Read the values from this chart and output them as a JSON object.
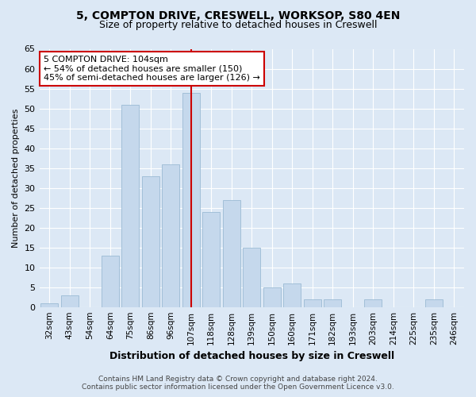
{
  "title_line1": "5, COMPTON DRIVE, CRESWELL, WORKSOP, S80 4EN",
  "title_line2": "Size of property relative to detached houses in Creswell",
  "xlabel": "Distribution of detached houses by size in Creswell",
  "ylabel": "Number of detached properties",
  "categories": [
    "32sqm",
    "43sqm",
    "54sqm",
    "64sqm",
    "75sqm",
    "86sqm",
    "96sqm",
    "107sqm",
    "118sqm",
    "128sqm",
    "139sqm",
    "150sqm",
    "160sqm",
    "171sqm",
    "182sqm",
    "193sqm",
    "203sqm",
    "214sqm",
    "225sqm",
    "235sqm",
    "246sqm"
  ],
  "values": [
    1,
    3,
    0,
    13,
    51,
    33,
    36,
    54,
    24,
    27,
    15,
    5,
    6,
    2,
    2,
    0,
    2,
    0,
    0,
    2,
    0
  ],
  "bar_color": "#c5d8ec",
  "bar_edge_color": "#9bbad4",
  "vline_index": 7,
  "vline_color": "#cc0000",
  "annotation_text": "5 COMPTON DRIVE: 104sqm\n← 54% of detached houses are smaller (150)\n45% of semi-detached houses are larger (126) →",
  "annotation_box_color": "#ffffff",
  "annotation_box_edge": "#cc0000",
  "ylim": [
    0,
    65
  ],
  "yticks": [
    0,
    5,
    10,
    15,
    20,
    25,
    30,
    35,
    40,
    45,
    50,
    55,
    60,
    65
  ],
  "footer_line1": "Contains HM Land Registry data © Crown copyright and database right 2024.",
  "footer_line2": "Contains public sector information licensed under the Open Government Licence v3.0.",
  "bg_color": "#dce8f5",
  "plot_bg_color": "#dce8f5",
  "title_fontsize": 10,
  "subtitle_fontsize": 9
}
